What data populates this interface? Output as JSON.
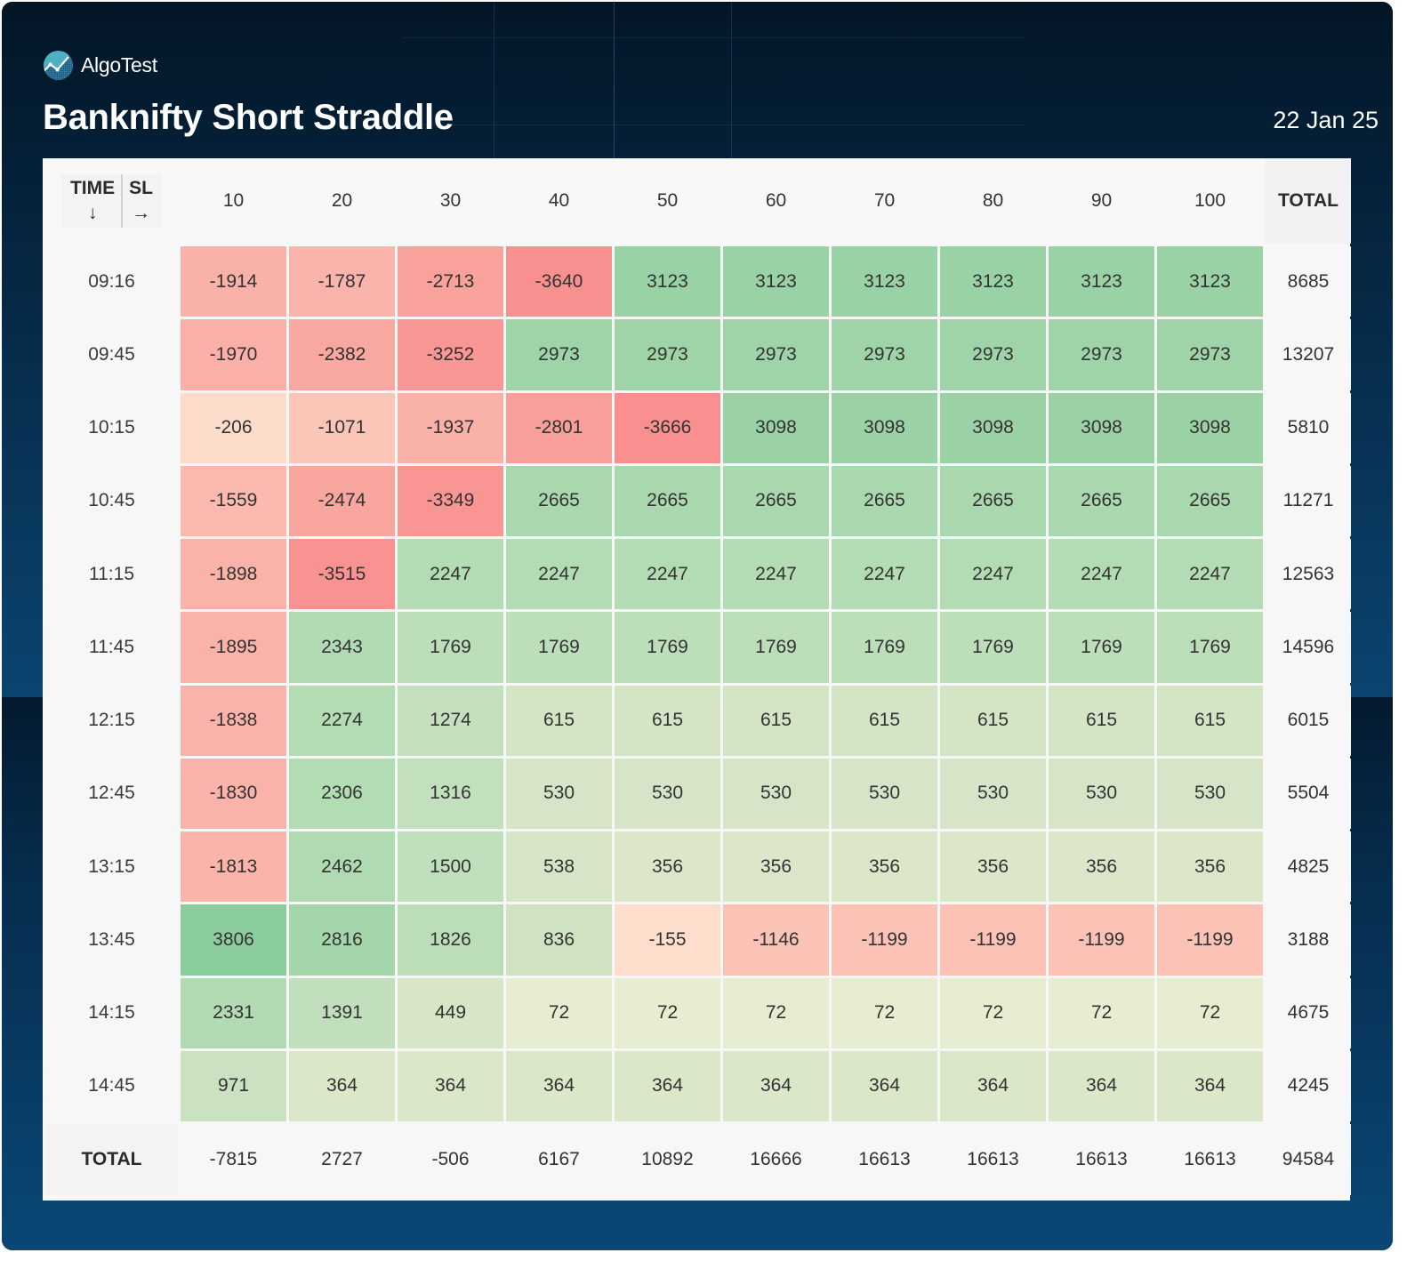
{
  "brand": {
    "name": "AlgoTest",
    "logo_icon": "algotest-chart-logo-icon"
  },
  "title": "Banknifty Short Straddle",
  "date": "22 Jan 25",
  "colors": {
    "neg_strong": "#f98f8f",
    "neg_mid": "#f9a39d",
    "neg_light": "#fbbfb3",
    "neg_faint": "#fde2cf",
    "neutral": "#eaeed2",
    "pos_faint": "#d9e6c8",
    "pos_light": "#c5e0bf",
    "pos_mid": "#b0dbb2",
    "pos_strong": "#8ccd9e"
  },
  "chart_data": {
    "type": "heatmap",
    "title": "Banknifty Short Straddle",
    "subtitle": "22 Jan 25",
    "corner": {
      "row_axis_label": "TIME",
      "row_axis_arrow": "↓",
      "col_axis_label": "SL",
      "col_axis_arrow": "→"
    },
    "xlabel": "SL",
    "ylabel": "TIME",
    "columns": [
      "10",
      "20",
      "30",
      "40",
      "50",
      "60",
      "70",
      "80",
      "90",
      "100"
    ],
    "total_label": "TOTAL",
    "rows": [
      {
        "time": "09:16",
        "values": [
          -1914,
          -1787,
          -2713,
          -3640,
          3123,
          3123,
          3123,
          3123,
          3123,
          3123
        ],
        "total": 8685
      },
      {
        "time": "09:45",
        "values": [
          -1970,
          -2382,
          -3252,
          2973,
          2973,
          2973,
          2973,
          2973,
          2973,
          2973
        ],
        "total": 13207
      },
      {
        "time": "10:15",
        "values": [
          -206,
          -1071,
          -1937,
          -2801,
          -3666,
          3098,
          3098,
          3098,
          3098,
          3098
        ],
        "total": 5810
      },
      {
        "time": "10:45",
        "values": [
          -1559,
          -2474,
          -3349,
          2665,
          2665,
          2665,
          2665,
          2665,
          2665,
          2665
        ],
        "total": 11271
      },
      {
        "time": "11:15",
        "values": [
          -1898,
          -3515,
          2247,
          2247,
          2247,
          2247,
          2247,
          2247,
          2247,
          2247
        ],
        "total": 12563
      },
      {
        "time": "11:45",
        "values": [
          -1895,
          2343,
          1769,
          1769,
          1769,
          1769,
          1769,
          1769,
          1769,
          1769
        ],
        "total": 14596
      },
      {
        "time": "12:15",
        "values": [
          -1838,
          2274,
          1274,
          615,
          615,
          615,
          615,
          615,
          615,
          615
        ],
        "total": 6015
      },
      {
        "time": "12:45",
        "values": [
          -1830,
          2306,
          1316,
          530,
          530,
          530,
          530,
          530,
          530,
          530
        ],
        "total": 5504
      },
      {
        "time": "13:15",
        "values": [
          -1813,
          2462,
          1500,
          538,
          356,
          356,
          356,
          356,
          356,
          356
        ],
        "total": 4825
      },
      {
        "time": "13:45",
        "values": [
          3806,
          2816,
          1826,
          836,
          -155,
          -1146,
          -1199,
          -1199,
          -1199,
          -1199
        ],
        "total": 3188
      },
      {
        "time": "14:15",
        "values": [
          2331,
          1391,
          449,
          72,
          72,
          72,
          72,
          72,
          72,
          72
        ],
        "total": 4675
      },
      {
        "time": "14:45",
        "values": [
          971,
          364,
          364,
          364,
          364,
          364,
          364,
          364,
          364,
          364
        ],
        "total": 4245
      }
    ],
    "column_totals": [
      -7815,
      2727,
      -506,
      6167,
      10892,
      16666,
      16613,
      16613,
      16613,
      16613
    ],
    "grand_total": 94584,
    "color_scale": "red (loss) to green (profit)"
  }
}
